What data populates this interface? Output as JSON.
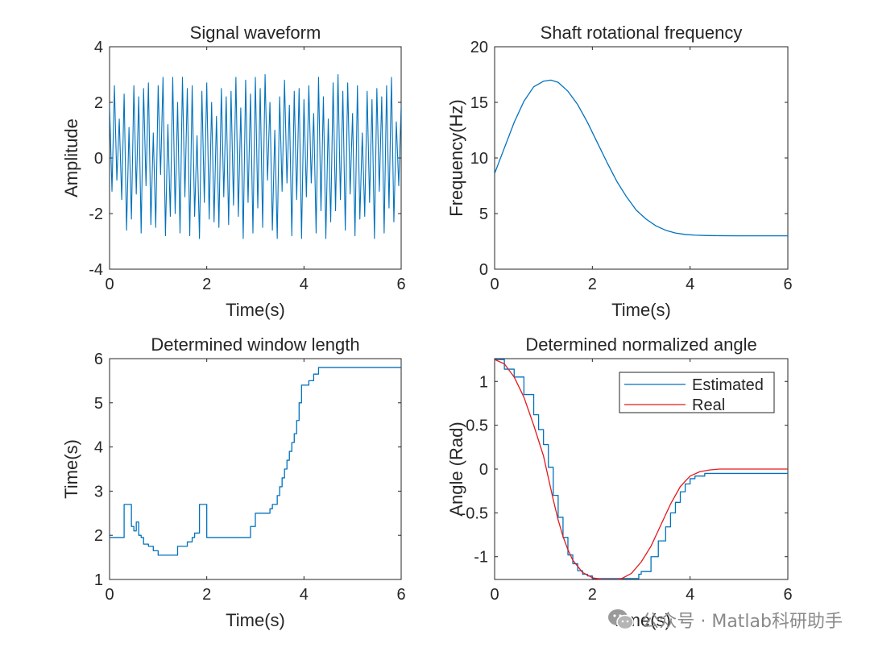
{
  "figure": {
    "watermark": "公众号 · Matlab科研助手",
    "watermark_icon": "wechat-icon"
  },
  "chart_data": [
    {
      "id": "signal",
      "type": "line",
      "title": "Signal waveform",
      "xlabel": "Time(s)",
      "ylabel": "Amplitude",
      "xlim": [
        0,
        6
      ],
      "ylim": [
        -4,
        4
      ],
      "xticks": [
        0,
        2,
        4,
        6
      ],
      "yticks": [
        -4,
        -2,
        0,
        2,
        4
      ],
      "grid": false,
      "series": [
        {
          "color": "#0072BD",
          "x": [
            0,
            0.05,
            0.1,
            0.15,
            0.2,
            0.25,
            0.3,
            0.35,
            0.4,
            0.45,
            0.5,
            0.55,
            0.6,
            0.65,
            0.7,
            0.75,
            0.8,
            0.85,
            0.9,
            0.95,
            1.0,
            1.05,
            1.1,
            1.15,
            1.2,
            1.25,
            1.3,
            1.35,
            1.4,
            1.45,
            1.5,
            1.55,
            1.6,
            1.65,
            1.7,
            1.75,
            1.8,
            1.85,
            1.9,
            1.95,
            2.0,
            2.05,
            2.1,
            2.15,
            2.2,
            2.25,
            2.3,
            2.35,
            2.4,
            2.45,
            2.5,
            2.55,
            2.6,
            2.65,
            2.7,
            2.75,
            2.8,
            2.85,
            2.9,
            2.95,
            3.0,
            3.05,
            3.1,
            3.15,
            3.2,
            3.25,
            3.3,
            3.35,
            3.4,
            3.45,
            3.5,
            3.55,
            3.6,
            3.65,
            3.7,
            3.75,
            3.8,
            3.85,
            3.9,
            3.95,
            4.0,
            4.05,
            4.1,
            4.15,
            4.2,
            4.25,
            4.3,
            4.35,
            4.4,
            4.45,
            4.5,
            4.55,
            4.6,
            4.65,
            4.7,
            4.75,
            4.8,
            4.85,
            4.9,
            4.95,
            5.0,
            5.05,
            5.1,
            5.15,
            5.2,
            5.25,
            5.3,
            5.35,
            5.4,
            5.45,
            5.5,
            5.55,
            5.6,
            5.65,
            5.7,
            5.75,
            5.8,
            5.85,
            5.9,
            5.95,
            6.0
          ],
          "y": [
            1.9,
            -1.2,
            2.6,
            -0.8,
            1.4,
            -1.5,
            2.3,
            -2.6,
            1.1,
            -2.2,
            2.6,
            -1.3,
            2.2,
            -2.7,
            2.5,
            -1.0,
            2.7,
            -2.4,
            0.9,
            -2.5,
            2.6,
            -0.6,
            2.9,
            -2.8,
            1.2,
            -2.1,
            2.9,
            -2.0,
            2.0,
            -2.7,
            2.9,
            -1.4,
            2.5,
            -2.8,
            2.6,
            -2.1,
            0.8,
            -2.9,
            2.4,
            -1.6,
            2.7,
            -2.2,
            2.0,
            -2.3,
            1.5,
            -2.5,
            2.5,
            -1.4,
            2.2,
            -2.4,
            2.4,
            -1.7,
            2.9,
            -2.1,
            1.8,
            -2.9,
            2.8,
            -1.6,
            2.3,
            -2.7,
            2.9,
            -1.8,
            2.5,
            -2.5,
            3.0,
            -0.8,
            2.0,
            -2.6,
            1.0,
            -2.9,
            2.2,
            -1.2,
            2.8,
            -0.9,
            1.9,
            -2.8,
            2.4,
            -1.5,
            2.5,
            -2.9,
            2.1,
            -1.4,
            2.6,
            -0.9,
            1.6,
            -2.7,
            2.9,
            -1.9,
            2.2,
            -2.9,
            1.4,
            -2.3,
            2.7,
            -1.9,
            3.0,
            -1.5,
            2.4,
            -2.6,
            2.7,
            -1.3,
            1.6,
            -2.8,
            2.6,
            -2.2,
            0.9,
            -2.1,
            2.4,
            -1.6,
            2.1,
            -2.9,
            2.5,
            -1.2,
            2.2,
            -2.7,
            2.6,
            -1.8,
            2.9,
            -2.3,
            1.3,
            -1.0,
            1.9
          ]
        }
      ]
    },
    {
      "id": "frequency",
      "type": "line",
      "title": "Shaft rotational frequency",
      "xlabel": "Time(s)",
      "ylabel": "Frequency(Hz)",
      "xlim": [
        0,
        6
      ],
      "ylim": [
        0,
        20
      ],
      "xticks": [
        0,
        2,
        4,
        6
      ],
      "yticks": [
        0,
        5,
        10,
        15,
        20
      ],
      "grid": false,
      "series": [
        {
          "color": "#0072BD",
          "x": [
            0,
            0.2,
            0.4,
            0.6,
            0.8,
            1.0,
            1.15,
            1.3,
            1.5,
            1.7,
            1.9,
            2.1,
            2.3,
            2.5,
            2.7,
            2.9,
            3.1,
            3.3,
            3.5,
            3.7,
            3.9,
            4.1,
            4.3,
            4.6,
            5.0,
            5.5,
            6.0
          ],
          "y": [
            8.6,
            10.9,
            13.2,
            15.1,
            16.4,
            16.9,
            17.0,
            16.8,
            16.0,
            14.8,
            13.2,
            11.4,
            9.6,
            7.9,
            6.5,
            5.3,
            4.5,
            3.9,
            3.5,
            3.25,
            3.12,
            3.06,
            3.03,
            3.01,
            3.0,
            3.0,
            3.0
          ]
        }
      ]
    },
    {
      "id": "window",
      "type": "line",
      "title": "Determined window length",
      "xlabel": "Time(s)",
      "ylabel": "Time(s)",
      "xlim": [
        0,
        6
      ],
      "ylim": [
        1,
        6
      ],
      "xticks": [
        0,
        2,
        4,
        6
      ],
      "yticks": [
        1,
        2,
        3,
        4,
        5,
        6
      ],
      "grid": false,
      "series": [
        {
          "color": "#0072BD",
          "step": true,
          "x": [
            0,
            0.2,
            0.3,
            0.4,
            0.45,
            0.5,
            0.55,
            0.6,
            0.65,
            0.7,
            0.8,
            0.9,
            1.0,
            1.15,
            1.4,
            1.5,
            1.6,
            1.7,
            1.75,
            1.8,
            1.85,
            1.9,
            2.0,
            2.2,
            2.9,
            3.0,
            3.3,
            3.35,
            3.4,
            3.45,
            3.5,
            3.55,
            3.6,
            3.65,
            3.7,
            3.75,
            3.8,
            3.85,
            3.9,
            3.95,
            4.0,
            4.1,
            4.2,
            4.3,
            4.4,
            6.0
          ],
          "y": [
            1.95,
            1.95,
            2.7,
            2.7,
            2.2,
            2.1,
            2.3,
            2.0,
            1.95,
            1.8,
            1.75,
            1.65,
            1.55,
            1.55,
            1.75,
            1.75,
            1.85,
            1.95,
            2.05,
            2.05,
            2.7,
            2.7,
            1.95,
            1.95,
            2.2,
            2.5,
            2.6,
            2.7,
            2.7,
            2.9,
            3.1,
            3.3,
            3.5,
            3.7,
            3.9,
            4.1,
            4.3,
            4.6,
            5.0,
            5.4,
            5.4,
            5.5,
            5.65,
            5.8,
            5.8,
            5.8
          ]
        }
      ]
    },
    {
      "id": "angle",
      "type": "line",
      "title": "Determined normalized angle",
      "xlabel": "Time(s)",
      "ylabel": "Angle (Rad)",
      "xlim": [
        0,
        6
      ],
      "ylim": [
        -1.26,
        1.26
      ],
      "xticks": [
        0,
        2,
        4,
        6
      ],
      "yticks": [
        -1,
        -0.5,
        0,
        0.5,
        1
      ],
      "grid": false,
      "legend": "top-right",
      "series": [
        {
          "name": "Estimated",
          "color": "#0072BD",
          "step": true,
          "x": [
            0,
            0.2,
            0.4,
            0.6,
            0.8,
            0.9,
            1.0,
            1.1,
            1.2,
            1.3,
            1.4,
            1.5,
            1.6,
            1.7,
            1.8,
            1.9,
            2.0,
            2.5,
            2.95,
            3.0,
            3.2,
            3.35,
            3.5,
            3.6,
            3.7,
            3.8,
            3.9,
            4.0,
            4.1,
            4.3,
            4.5,
            6.0
          ],
          "y": [
            1.25,
            1.14,
            1.05,
            0.85,
            0.62,
            0.45,
            0.28,
            0.02,
            -0.3,
            -0.55,
            -0.78,
            -0.98,
            -1.08,
            -1.16,
            -1.2,
            -1.22,
            -1.25,
            -1.25,
            -1.2,
            -1.17,
            -1.0,
            -0.82,
            -0.66,
            -0.5,
            -0.38,
            -0.26,
            -0.17,
            -0.11,
            -0.08,
            -0.05,
            -0.05,
            -0.05
          ]
        },
        {
          "name": "Real",
          "color": "#E3191C",
          "x": [
            0,
            0.2,
            0.4,
            0.6,
            0.8,
            1.0,
            1.1,
            1.2,
            1.3,
            1.4,
            1.5,
            1.6,
            1.8,
            2.0,
            2.2,
            2.4,
            2.5,
            2.6,
            2.8,
            3.0,
            3.2,
            3.4,
            3.6,
            3.8,
            4.0,
            4.2,
            4.4,
            4.6,
            5.0,
            5.5,
            6.0
          ],
          "y": [
            1.25,
            1.2,
            1.05,
            0.82,
            0.5,
            0.15,
            -0.1,
            -0.35,
            -0.58,
            -0.77,
            -0.92,
            -1.04,
            -1.18,
            -1.24,
            -1.26,
            -1.26,
            -1.26,
            -1.25,
            -1.19,
            -1.06,
            -0.88,
            -0.64,
            -0.4,
            -0.2,
            -0.08,
            -0.03,
            -0.01,
            0.0,
            0.0,
            0.0,
            0.0
          ]
        }
      ]
    }
  ]
}
